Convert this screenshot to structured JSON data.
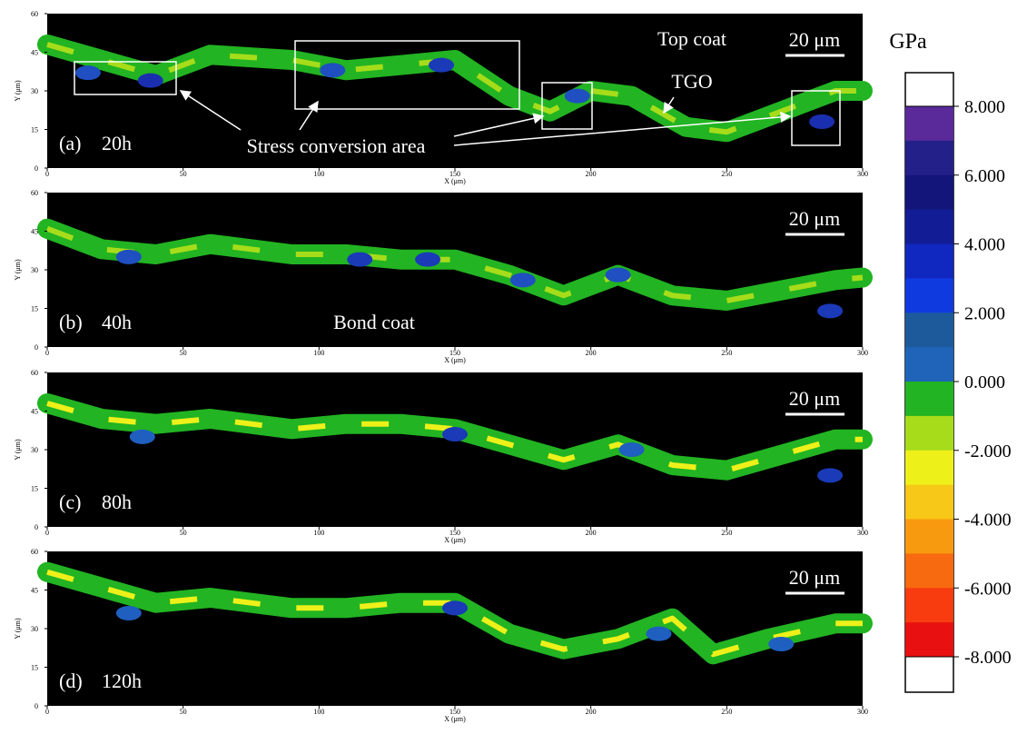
{
  "figure": {
    "x_axis_label": "X (μm)",
    "y_axis_label": "Y (μm)",
    "xlim": [
      0,
      300
    ],
    "xticks": [
      0,
      50,
      100,
      150,
      200,
      250,
      300
    ],
    "ylim": [
      0,
      60
    ],
    "yticks": [
      0,
      15,
      30,
      45,
      60
    ],
    "panels": [
      {
        "label": "(a)",
        "time": "20h",
        "scale_bar": "20 μm",
        "annotations": [
          "Top coat",
          "TGO",
          "Stress conversion area"
        ]
      },
      {
        "label": "(b)",
        "time": "40h",
        "scale_bar": "20 μm",
        "annotations": [
          "Bond coat"
        ]
      },
      {
        "label": "(c)",
        "time": "80h",
        "scale_bar": "20 μm",
        "annotations": []
      },
      {
        "label": "(d)",
        "time": "120h",
        "scale_bar": "20 μm",
        "annotations": []
      }
    ],
    "colorbar": {
      "unit": "GPa",
      "range": [
        -8,
        8
      ],
      "ticks": [
        {
          "value": 8,
          "label": "8.000"
        },
        {
          "value": 6,
          "label": "6.000"
        },
        {
          "value": 4,
          "label": "4.000"
        },
        {
          "value": 2,
          "label": "2.000"
        },
        {
          "value": 0,
          "label": "0.000"
        },
        {
          "value": -2,
          "label": "-2.000"
        },
        {
          "value": -4,
          "label": "-4.000"
        },
        {
          "value": -6,
          "label": "-6.000"
        },
        {
          "value": -8,
          "label": "-8.000"
        }
      ],
      "colors": [
        "#5a2a9a",
        "#24208a",
        "#14157a",
        "#121c94",
        "#1028c0",
        "#0f3ae0",
        "#1d5a9c",
        "#1f64b8",
        "#22b422",
        "#a6dc1a",
        "#eef01a",
        "#f8c818",
        "#f89a10",
        "#f86a10",
        "#f83c10",
        "#e81010"
      ]
    }
  }
}
